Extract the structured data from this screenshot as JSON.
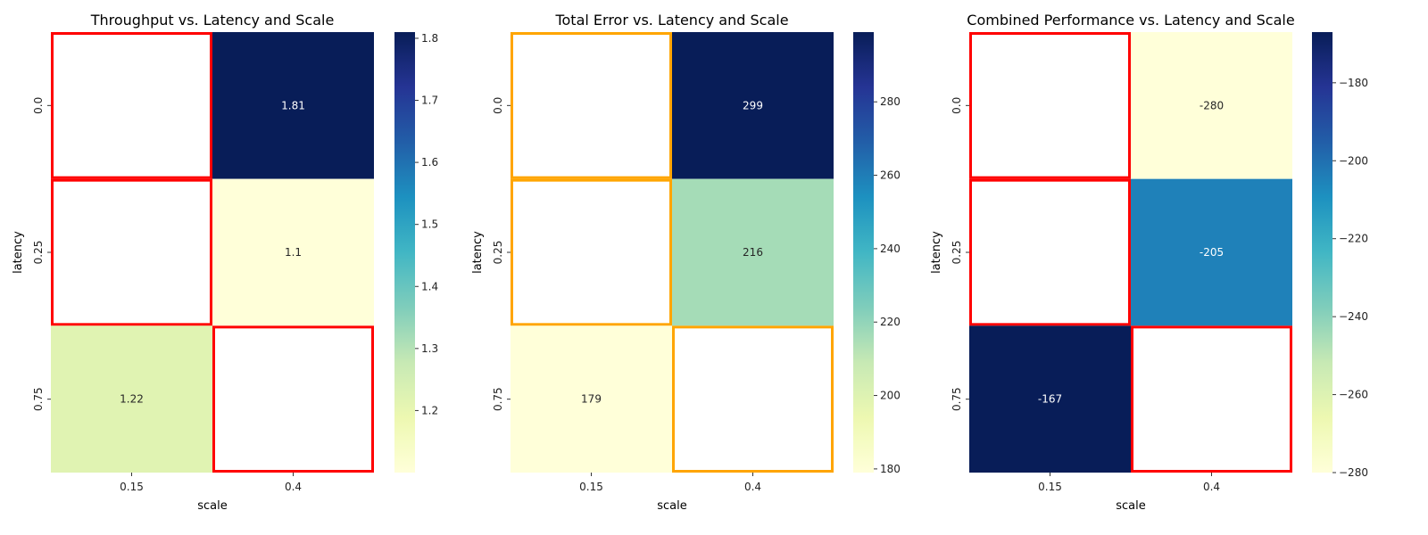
{
  "chart_data": [
    {
      "type": "heatmap",
      "title": "Throughput vs. Latency and Scale",
      "xlabel": "scale",
      "ylabel": "latency",
      "x_categories": [
        "0.15",
        "0.4"
      ],
      "y_categories": [
        "0.0",
        "0.25",
        "0.75"
      ],
      "values": [
        [
          null,
          1.81
        ],
        [
          null,
          1.1
        ],
        [
          1.22,
          null
        ]
      ],
      "value_labels": [
        [
          "",
          "1.81"
        ],
        [
          "",
          "1.1"
        ],
        [
          "1.22",
          ""
        ]
      ],
      "colorbar": {
        "min": 1.1,
        "max": 1.81,
        "ticks": [
          1.2,
          1.3,
          1.4,
          1.5,
          1.6,
          1.7,
          1.8
        ],
        "tick_labels": [
          "1.2",
          "1.3",
          "1.4",
          "1.5",
          "1.6",
          "1.7",
          "1.8"
        ],
        "colormap": "YlGnBu"
      },
      "missing_cell_border_color": "#ff0000"
    },
    {
      "type": "heatmap",
      "title": "Total Error vs. Latency and Scale",
      "xlabel": "scale",
      "ylabel": "latency",
      "x_categories": [
        "0.15",
        "0.4"
      ],
      "y_categories": [
        "0.0",
        "0.25",
        "0.75"
      ],
      "values": [
        [
          null,
          299
        ],
        [
          null,
          216
        ],
        [
          179,
          null
        ]
      ],
      "value_labels": [
        [
          "",
          "299"
        ],
        [
          "",
          "216"
        ],
        [
          "179",
          ""
        ]
      ],
      "colorbar": {
        "min": 179,
        "max": 299,
        "ticks": [
          180,
          200,
          220,
          240,
          260,
          280
        ],
        "tick_labels": [
          "180",
          "200",
          "220",
          "240",
          "260",
          "280"
        ],
        "colormap": "YlGnBu"
      },
      "missing_cell_border_color": "#ffa500"
    },
    {
      "type": "heatmap",
      "title": "Combined Performance vs. Latency and Scale",
      "xlabel": "scale",
      "ylabel": "latency",
      "x_categories": [
        "0.15",
        "0.4"
      ],
      "y_categories": [
        "0.0",
        "0.25",
        "0.75"
      ],
      "values": [
        [
          null,
          -280
        ],
        [
          null,
          -205
        ],
        [
          -167,
          null
        ]
      ],
      "value_labels": [
        [
          "",
          "-280"
        ],
        [
          "",
          "-205"
        ],
        [
          "-167",
          ""
        ]
      ],
      "colorbar": {
        "min": -280,
        "max": -167,
        "ticks": [
          -280,
          -260,
          -240,
          -220,
          -200,
          -180
        ],
        "tick_labels": [
          "−280",
          "−260",
          "−240",
          "−220",
          "−200",
          "−180"
        ],
        "colormap": "YlGnBu"
      },
      "missing_cell_border_color": "#ff0000"
    }
  ]
}
